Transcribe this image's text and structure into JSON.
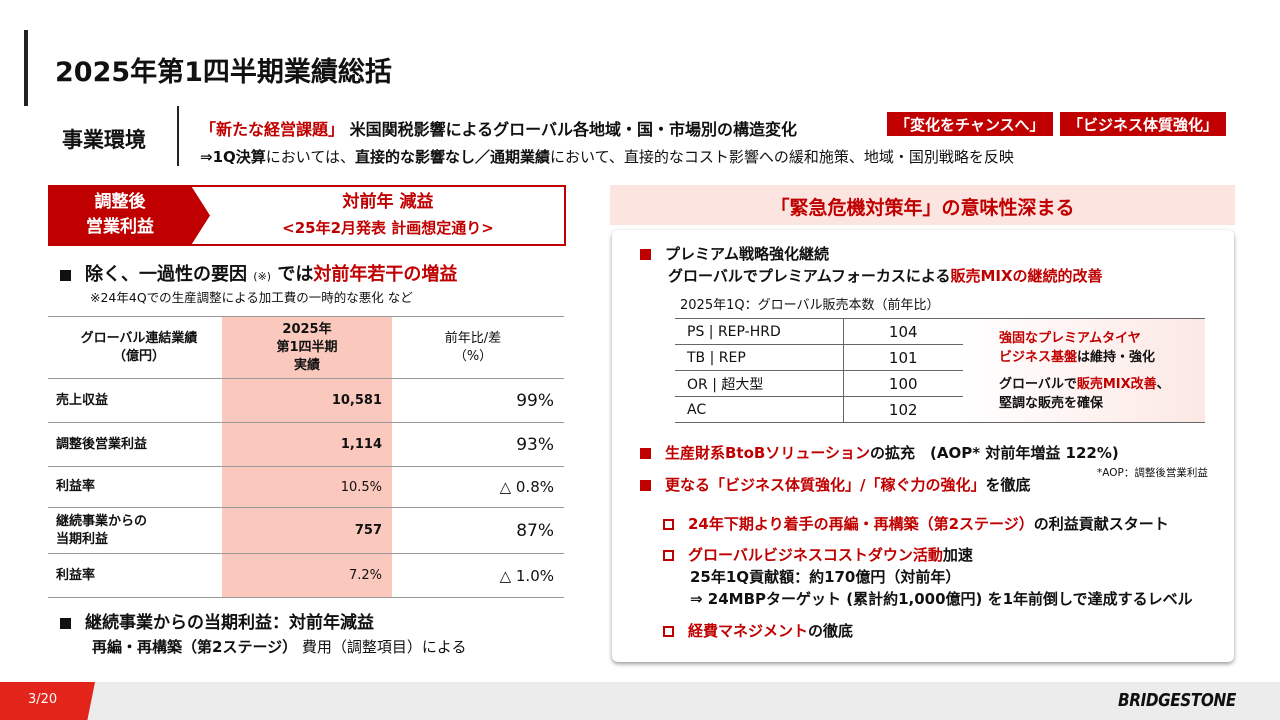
{
  "title": "2025年第1四半期業績総括",
  "env": {
    "label": "事業環境",
    "line1_red": "「新たな経営課題」",
    "line1_rest": "米国関税影響によるグローバル各地域・国・市場別の構造変化",
    "line2_a": "⇒1Q決算",
    "line2_b": "においては、",
    "line2_c": "直接的な影響なし／通期業績",
    "line2_d": "において、直接的なコスト影響への緩和施策、地域・国別戦略を反映",
    "badges": [
      "「変化をチャンスへ」",
      "「ビジネス体質強化」"
    ]
  },
  "left": {
    "box": {
      "label1": "調整後",
      "label2": "営業利益",
      "main": "対前年 減益",
      "sub": "<25年2月発表 計画想定通り>"
    },
    "bullet1": {
      "a": "除く、一過性の要因",
      "note_mark": "(※)",
      "b": "では",
      "red": "対前年若干の増益",
      "note": "※24年4Qでの生産調整による加工費の一時的な悪化 など"
    },
    "table": {
      "headers": [
        [
          "グローバル連結業績",
          "（億円）"
        ],
        [
          "2025年",
          "第1四半期",
          "実績"
        ],
        [
          "前年比/差",
          "（%）"
        ]
      ],
      "rows": [
        {
          "label": "売上収益",
          "value": "10,581",
          "ratio": "99%",
          "size": "big"
        },
        {
          "label": "調整後営業利益",
          "value": "1,114",
          "ratio": "93%",
          "size": "big"
        },
        {
          "label": "利益率",
          "value": "10.5%",
          "ratio": "△ 0.8%",
          "size": "small"
        },
        {
          "label": "継続事業からの\n当期利益",
          "value": "757",
          "ratio": "87%",
          "size": "big"
        },
        {
          "label": "利益率",
          "value": "7.2%",
          "ratio": "△ 1.0%",
          "size": "small"
        }
      ]
    },
    "bullet2": {
      "title": "継続事業からの当期利益：対前年減益",
      "sub_a": "再編・再構築（第2ステージ）",
      "sub_b": "費用（調整項目）による"
    }
  },
  "right": {
    "header": "「緊急危機対策年」の意味性深まる",
    "b1": {
      "title": "プレミアム戦略強化継続",
      "line2": "グローバルでプレミアムフォーカスによる",
      "line2_red": "販売MIXの継続的改善",
      "caption": "2025年1Q：グローバル販売本数（前年比）"
    },
    "sales": [
      {
        "k": "PS | REP-HRD",
        "v": "104"
      },
      {
        "k": "TB | REP",
        "v": "101"
      },
      {
        "k": "OR | 超大型",
        "v": "100"
      },
      {
        "k": "AC",
        "v": "102"
      }
    ],
    "sales_note": {
      "a_red": "強固なプレミアムタイヤ",
      "b_red": "ビジネス基盤",
      "b": "は維持・強化",
      "c": "グローバルで",
      "c_red": "販売MIX改善",
      "c2": "、",
      "d": "堅調な販売を確保"
    },
    "b2": {
      "red": "生産財系BtoBソリューション",
      "rest": "の拡充　(AOP* 対前年増益 122%)",
      "footnote": "*AOP：調整後営業利益"
    },
    "b3": {
      "red": "更なる「ビジネス体質強化」/「稼ぐ力の強化」",
      "rest": "を徹底"
    },
    "sub1": {
      "red": "24年下期より着手の再編・再構築（第2ステージ）",
      "rest": "の利益貢献スタート"
    },
    "sub2": {
      "red": "グローバルビジネスコストダウン活動",
      "rest": "加速",
      "l2": "25年1Q貢献額：約170億円（対前年）",
      "l3": "⇒ 24MBPターゲット (累計約1,000億円) を1年前倒しで達成するレベル"
    },
    "sub3": {
      "red": "経費マネジメント",
      "rest": "の徹底"
    }
  },
  "footer": {
    "page": "3/20",
    "logo": "BRIDGESTONE"
  },
  "colors": {
    "accent": "#c00000",
    "pink": "#fbc8bd",
    "footer_red": "#e3241b"
  }
}
